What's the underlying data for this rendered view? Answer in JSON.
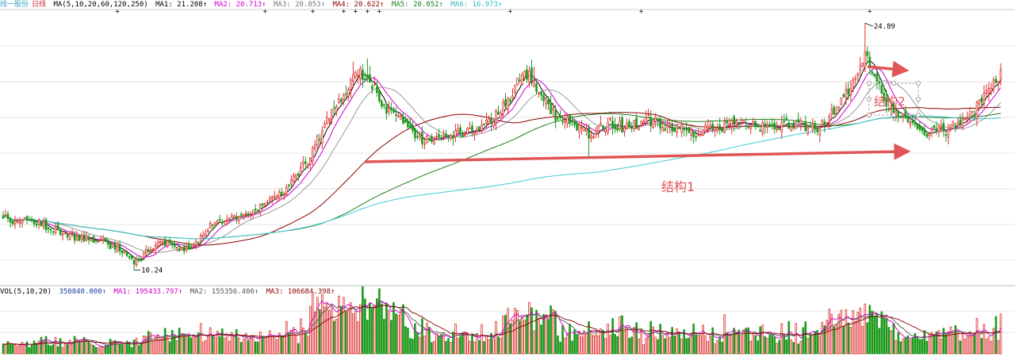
{
  "header": {
    "stock_name": "线一股份",
    "period": "日线",
    "ma_params": "MA(5,10,20,60,120,250)",
    "ma1": "MA1: 21.208↑",
    "ma2": "MA2: 20.713↑",
    "ma3": "MA3: 20.053↑",
    "ma4": "MA4: 20.622↑",
    "ma5": "MA5: 20.052↑",
    "ma6": "MA6: 16.973↑"
  },
  "volume_header": {
    "params": "VOL(5,10,20)",
    "vol": "350840.000↑",
    "ma1": "MA1: 195433.797↑",
    "ma2": "MA2: 155356.406↑",
    "ma3": "MA3: 106684.398↑"
  },
  "annotations": {
    "high_label": "24.89",
    "low_label": "10.24",
    "structure1": "结构1",
    "structure2": "结构2"
  },
  "colors": {
    "up": "#e03030",
    "down": "#1a9a1a",
    "ma1": "#000000",
    "ma2": "#cc00cc",
    "ma3": "#999999",
    "ma4": "#8b0000",
    "ma5": "#1f7f1f",
    "ma6": "#40c8d8",
    "arrow": "#e05555"
  },
  "chart_data": {
    "type": "candlestick",
    "price_range": [
      9.5,
      25.6
    ],
    "high": 24.89,
    "low": 10.24,
    "anchors": [
      [
        0,
        13.3
      ],
      [
        15,
        13.0
      ],
      [
        30,
        12.2
      ],
      [
        40,
        12.0
      ],
      [
        50,
        11.4
      ],
      [
        55,
        10.6
      ],
      [
        62,
        11.6
      ],
      [
        70,
        12.0
      ],
      [
        76,
        11.3
      ],
      [
        82,
        12.0
      ],
      [
        88,
        13.0
      ],
      [
        95,
        13.3
      ],
      [
        104,
        13.6
      ],
      [
        112,
        14.4
      ],
      [
        120,
        15.2
      ],
      [
        128,
        16.8
      ],
      [
        134,
        18.6
      ],
      [
        140,
        19.9
      ],
      [
        147,
        21.7
      ],
      [
        153,
        22.0
      ],
      [
        159,
        20.0
      ],
      [
        166,
        19.6
      ],
      [
        173,
        18.2
      ],
      [
        181,
        17.8
      ],
      [
        189,
        18.2
      ],
      [
        198,
        18.6
      ],
      [
        206,
        19.2
      ],
      [
        213,
        20.6
      ],
      [
        218,
        22.1
      ],
      [
        224,
        21.2
      ],
      [
        232,
        19.3
      ],
      [
        240,
        19.0
      ],
      [
        247,
        18.2
      ],
      [
        254,
        19.0
      ],
      [
        262,
        18.6
      ],
      [
        270,
        19.2
      ],
      [
        280,
        18.8
      ],
      [
        292,
        18.4
      ],
      [
        304,
        18.8
      ],
      [
        318,
        18.8
      ],
      [
        332,
        18.9
      ],
      [
        343,
        18.7
      ],
      [
        350,
        19.8
      ],
      [
        356,
        21.2
      ],
      [
        362,
        23.2
      ],
      [
        366,
        21.9
      ],
      [
        370,
        20.4
      ],
      [
        378,
        19.2
      ],
      [
        388,
        18.3
      ],
      [
        398,
        18.6
      ],
      [
        405,
        19.2
      ],
      [
        411,
        20.2
      ],
      [
        418,
        21.8
      ]
    ]
  }
}
